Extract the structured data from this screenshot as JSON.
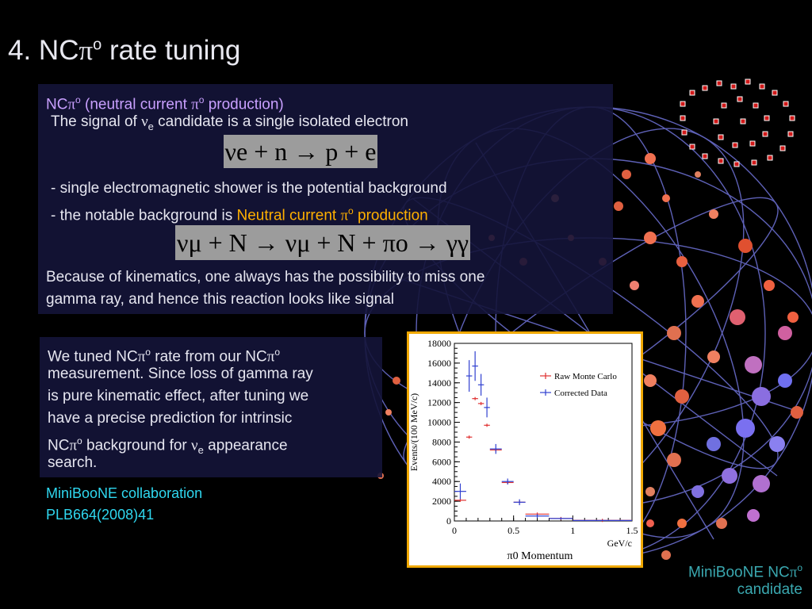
{
  "title": {
    "prefix": "4. NC",
    "pi": "π",
    "sup": "o",
    "suffix": " rate tuning"
  },
  "box1": {
    "heading": {
      "prefix": "NC",
      "pi": "π",
      "sup": "o",
      "mid": " (neutral current ",
      "pi2": "π",
      "sup2": "o",
      "suffix": " production)"
    },
    "signal_line": {
      "prefix": "The signal of ",
      "nu": "ν",
      "sub": "e",
      "suffix": " candidate is a single isolated electron"
    },
    "eq1": "νe + n → p + e",
    "bullet1": "- single electromagnetic shower is the potential background",
    "bullet2": {
      "prefix": "- the notable background is ",
      "highlight": "Neutral current ",
      "pi": "π",
      "sup": "o",
      "highlight2": " production"
    },
    "eq2": "νμ + N → νμ + N + πo → γγ",
    "para_line1": "Because of kinematics, one always has the possibility to miss one",
    "para_line2": "gamma ray, and hence this reaction looks like signal"
  },
  "box2": {
    "line1": {
      "prefix": "We tuned NC",
      "pi": "π",
      "sup": "o",
      "mid": " rate from our NC",
      "pi2": "π",
      "sup2": "o"
    },
    "line2": "measurement. Since loss of gamma ray",
    "line3": "is pure kinematic effect, after tuning we",
    "line4": "have a precise prediction for intrinsic",
    "line5": {
      "prefix": "NC",
      "pi": "π",
      "sup": "o",
      "mid": " background for ",
      "nu": "ν",
      "sub": "e",
      "suffix": " appearance"
    },
    "line6": "search."
  },
  "citation": {
    "line1": "MiniBooNE collaboration",
    "line2": "PLB664(2008)41"
  },
  "caption": {
    "line1_prefix": "MiniBooNE NC",
    "pi": "π",
    "sup": "o",
    "line2": "candidate"
  },
  "colors": {
    "accent_purple": "#c9a0ff",
    "highlight_orange": "#ffb000",
    "citation_cyan": "#2fd8f0",
    "caption_teal": "#3aa8b0",
    "chart_border": "#f0a800",
    "raw_mc": "#e03030",
    "corrected": "#3040d0"
  },
  "chart_data": {
    "type": "scatter",
    "xlabel": "π0 Momentum",
    "xunit": "GeV/c",
    "ylabel": "Events/(100 MeV/c)",
    "xlim": [
      0,
      1.5
    ],
    "ylim": [
      0,
      18000
    ],
    "x_ticks": [
      "0",
      "0.5",
      "1",
      "1.5"
    ],
    "y_ticks": [
      "0",
      "2000",
      "4000",
      "6000",
      "8000",
      "10000",
      "12000",
      "14000",
      "16000",
      "18000"
    ],
    "legend_position": "top-right",
    "series": [
      {
        "name": "Raw Monte Carlo",
        "color": "#e03030",
        "x": [
          0.05,
          0.125,
          0.175,
          0.225,
          0.275,
          0.35,
          0.45,
          0.55,
          0.7,
          0.9,
          1.25
        ],
        "y": [
          2100,
          8500,
          12400,
          11900,
          9700,
          7200,
          3900,
          1900,
          700,
          250,
          60
        ],
        "xerr": [
          0.05,
          0.025,
          0.025,
          0.025,
          0.025,
          0.05,
          0.05,
          0.05,
          0.1,
          0.1,
          0.25
        ],
        "yerr": [
          0,
          0,
          0,
          0,
          0,
          0,
          0,
          0,
          0,
          0,
          0
        ]
      },
      {
        "name": "Corrected Data",
        "color": "#3040d0",
        "x": [
          0.05,
          0.125,
          0.175,
          0.225,
          0.275,
          0.35,
          0.45,
          0.55,
          0.7,
          0.9,
          1.25
        ],
        "y": [
          3000,
          14700,
          15700,
          13800,
          11500,
          7300,
          4000,
          1900,
          500,
          250,
          50
        ],
        "xerr": [
          0.05,
          0.025,
          0.025,
          0.025,
          0.025,
          0.05,
          0.05,
          0.05,
          0.1,
          0.1,
          0.25
        ],
        "yerr": [
          800,
          1600,
          1500,
          1100,
          1000,
          500,
          300,
          300,
          200,
          100,
          50
        ]
      }
    ]
  }
}
